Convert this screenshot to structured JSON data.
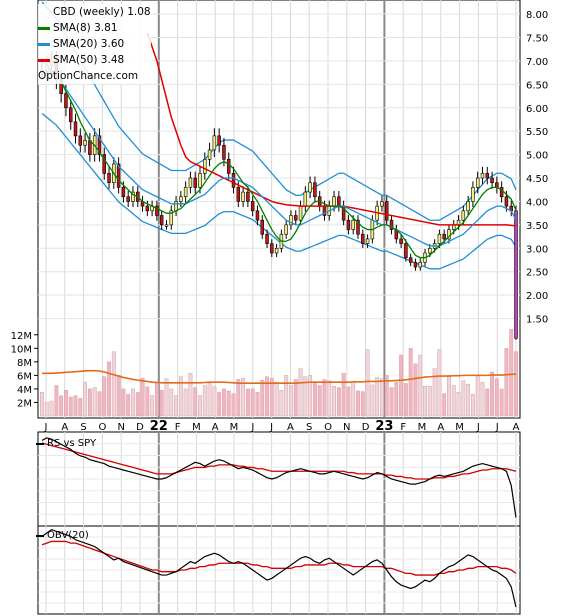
{
  "chart_data": {
    "type": "candlestick",
    "title": "CBD (weekly) 1.08",
    "watermark": "OptionChance.com",
    "legend": [
      {
        "label": "SMA(8) 3.81",
        "color": "#008000"
      },
      {
        "label": "SMA(20) 3.60",
        "color": "#1e8fd6"
      },
      {
        "label": "SMA(50) 3.48",
        "color": "#e00000"
      }
    ],
    "x_tick_labels": [
      "J",
      "A",
      "S",
      "O",
      "N",
      "D",
      "22",
      "F",
      "M",
      "A",
      "M",
      "J",
      "J",
      "A",
      "S",
      "O",
      "N",
      "D",
      "23",
      "F",
      "M",
      "A",
      "M",
      "J",
      "J",
      "A"
    ],
    "price_axis_ticks": [
      "8.00",
      "7.50",
      "7.00",
      "6.50",
      "6.00",
      "5.50",
      "5.00",
      "4.50",
      "4.00",
      "3.50",
      "3.00",
      "2.50",
      "2.00",
      "1.50"
    ],
    "price_ylim": [
      1.0,
      8.3
    ],
    "volume_axis_ticks": [
      "12M",
      "10M",
      "8M",
      "6M",
      "4M",
      "2M"
    ],
    "volume_ylim": [
      0,
      13
    ],
    "close": [
      6.8,
      6.9,
      7.0,
      6.6,
      6.3,
      6.0,
      5.7,
      5.4,
      5.2,
      5.3,
      5.0,
      5.4,
      5.0,
      4.6,
      4.4,
      4.8,
      4.3,
      4.1,
      4.0,
      4.2,
      4.0,
      3.9,
      3.8,
      3.9,
      3.7,
      3.5,
      3.5,
      3.8,
      4.0,
      4.1,
      4.3,
      4.5,
      4.3,
      4.6,
      4.9,
      5.1,
      5.4,
      5.2,
      4.9,
      4.6,
      4.3,
      4.0,
      4.2,
      4.0,
      3.8,
      3.6,
      3.3,
      3.1,
      2.9,
      3.0,
      3.3,
      3.5,
      3.7,
      3.6,
      3.9,
      4.2,
      4.4,
      4.1,
      3.9,
      3.7,
      3.9,
      4.1,
      3.9,
      3.6,
      3.4,
      3.6,
      3.3,
      3.1,
      3.2,
      3.6,
      3.9,
      4.0,
      3.6,
      3.4,
      3.2,
      3.1,
      2.8,
      2.7,
      2.6,
      2.7,
      2.9,
      3.0,
      3.1,
      3.3,
      3.2,
      3.4,
      3.5,
      3.6,
      3.8,
      4.0,
      4.3,
      4.5,
      4.6,
      4.5,
      4.4,
      4.3,
      4.1,
      3.9,
      3.8,
      1.08
    ],
    "sma8": [
      6.7,
      6.75,
      6.8,
      6.7,
      6.55,
      6.35,
      6.15,
      5.95,
      5.7,
      5.5,
      5.3,
      5.2,
      5.05,
      4.9,
      4.75,
      4.6,
      4.45,
      4.35,
      4.25,
      4.15,
      4.1,
      4.0,
      3.95,
      3.9,
      3.85,
      3.8,
      3.75,
      3.75,
      3.8,
      3.85,
      3.95,
      4.05,
      4.15,
      4.25,
      4.4,
      4.55,
      4.7,
      4.8,
      4.85,
      4.8,
      4.7,
      4.55,
      4.4,
      4.3,
      4.15,
      4.0,
      3.8,
      3.6,
      3.4,
      3.25,
      3.15,
      3.15,
      3.2,
      3.35,
      3.55,
      3.75,
      3.9,
      4.0,
      4.0,
      3.95,
      3.9,
      3.9,
      3.9,
      3.85,
      3.75,
      3.65,
      3.55,
      3.45,
      3.4,
      3.4,
      3.45,
      3.5,
      3.5,
      3.45,
      3.4,
      3.3,
      3.15,
      3.0,
      2.85,
      2.8,
      2.8,
      2.85,
      2.95,
      3.05,
      3.15,
      3.25,
      3.35,
      3.45,
      3.55,
      3.7,
      3.85,
      4.0,
      4.15,
      4.25,
      4.3,
      4.3,
      4.25,
      4.15,
      4.05,
      3.81
    ],
    "sma20": [
      7.0,
      6.9,
      6.8,
      6.7,
      6.55,
      6.4,
      6.25,
      6.1,
      5.95,
      5.8,
      5.65,
      5.5,
      5.35,
      5.2,
      5.05,
      4.9,
      4.75,
      4.65,
      4.55,
      4.45,
      4.35,
      4.25,
      4.2,
      4.15,
      4.1,
      4.05,
      4.0,
      3.95,
      3.95,
      3.95,
      3.95,
      4.0,
      4.05,
      4.1,
      4.15,
      4.25,
      4.35,
      4.45,
      4.5,
      4.5,
      4.5,
      4.45,
      4.4,
      4.35,
      4.3,
      4.2,
      4.1,
      4.0,
      3.9,
      3.8,
      3.7,
      3.6,
      3.55,
      3.5,
      3.5,
      3.55,
      3.6,
      3.65,
      3.7,
      3.75,
      3.8,
      3.85,
      3.9,
      3.9,
      3.85,
      3.8,
      3.75,
      3.7,
      3.65,
      3.6,
      3.55,
      3.5,
      3.5,
      3.45,
      3.4,
      3.35,
      3.3,
      3.25,
      3.2,
      3.15,
      3.1,
      3.05,
      3.05,
      3.05,
      3.1,
      3.15,
      3.2,
      3.25,
      3.3,
      3.4,
      3.5,
      3.6,
      3.7,
      3.8,
      3.85,
      3.9,
      3.9,
      3.85,
      3.8,
      3.6
    ],
    "sma50": [
      null,
      null,
      null,
      null,
      null,
      null,
      null,
      null,
      null,
      null,
      null,
      null,
      null,
      null,
      null,
      null,
      null,
      null,
      null,
      null,
      null,
      null,
      7.6,
      7.3,
      7.0,
      6.6,
      6.2,
      5.8,
      5.5,
      5.2,
      4.95,
      4.85,
      4.8,
      4.75,
      4.7,
      4.65,
      4.6,
      4.55,
      4.5,
      4.45,
      4.4,
      4.35,
      4.3,
      4.25,
      4.2,
      4.15,
      4.1,
      4.05,
      4.0,
      3.97,
      3.95,
      3.93,
      3.92,
      3.91,
      3.9,
      3.9,
      3.9,
      3.9,
      3.9,
      3.9,
      3.9,
      3.9,
      3.9,
      3.9,
      3.88,
      3.86,
      3.84,
      3.82,
      3.8,
      3.78,
      3.76,
      3.74,
      3.72,
      3.7,
      3.68,
      3.66,
      3.64,
      3.62,
      3.6,
      3.58,
      3.56,
      3.54,
      3.52,
      3.5,
      3.5,
      3.5,
      3.5,
      3.5,
      3.5,
      3.5,
      3.5,
      3.5,
      3.5,
      3.5,
      3.5,
      3.5,
      3.5,
      3.5,
      3.49,
      3.48
    ],
    "volume": [
      3.5,
      2.0,
      2.2,
      4.5,
      3.0,
      3.8,
      2.8,
      3.0,
      2.6,
      5.0,
      4.0,
      4.2,
      3.6,
      5.8,
      8.0,
      9.5,
      6.0,
      4.0,
      3.2,
      4.0,
      3.5,
      5.6,
      4.3,
      3.0,
      5.0,
      3.8,
      5.5,
      4.0,
      3.0,
      5.8,
      4.0,
      6.3,
      4.2,
      3.0,
      4.5,
      4.8,
      4.3,
      3.5,
      4.0,
      3.7,
      3.3,
      5.4,
      5.6,
      4.0,
      4.0,
      3.5,
      5.3,
      5.8,
      5.6,
      5.0,
      3.8,
      6.0,
      4.5,
      5.4,
      7.0,
      5.8,
      6.0,
      5.0,
      4.5,
      5.4,
      5.2,
      4.4,
      4.2,
      6.3,
      4.3,
      5.0,
      3.7,
      3.6,
      9.8,
      4.6,
      5.7,
      5.5,
      6.0,
      4.2,
      5.0,
      9.0,
      4.8,
      10.0,
      7.7,
      9.0,
      4.4,
      4.4,
      7.0,
      9.8,
      3.3,
      6.0,
      4.5,
      3.5,
      5.2,
      4.7,
      3.2,
      6.0,
      5.0,
      4.0,
      6.5,
      5.5,
      4.0,
      10.0,
      12.8,
      9.5
    ],
    "volume_sma": [
      6.3,
      6.3,
      6.3,
      6.35,
      6.4,
      6.45,
      6.5,
      6.55,
      6.6,
      6.65,
      6.7,
      6.7,
      6.65,
      6.5,
      6.3,
      6.1,
      5.9,
      5.7,
      5.55,
      5.4,
      5.3,
      5.2,
      5.1,
      5.0,
      4.95,
      4.9,
      4.9,
      4.9,
      4.9,
      4.9,
      4.9,
      4.9,
      4.9,
      4.9,
      4.95,
      5.0,
      5.0,
      5.0,
      5.0,
      4.95,
      4.9,
      4.85,
      4.85,
      4.85,
      4.85,
      4.85,
      4.85,
      4.85,
      4.85,
      4.85,
      4.85,
      4.85,
      4.85,
      4.85,
      4.9,
      4.95,
      5.0,
      5.0,
      5.0,
      5.0,
      5.0,
      5.0,
      5.0,
      5.0,
      5.0,
      5.05,
      5.05,
      5.05,
      5.1,
      5.1,
      5.1,
      5.15,
      5.2,
      5.2,
      5.25,
      5.3,
      5.35,
      5.45,
      5.55,
      5.65,
      5.75,
      5.8,
      5.85,
      5.9,
      5.9,
      5.9,
      5.95,
      5.95,
      6.0,
      6.0,
      6.0,
      6.0,
      6.0,
      6.0,
      6.05,
      6.05,
      6.05,
      6.1,
      6.15,
      6.2
    ],
    "rs_label": "RS vs SPY",
    "rs": [
      100,
      102,
      101,
      99,
      97,
      95,
      93,
      90,
      88,
      87,
      85,
      84,
      83,
      82,
      80,
      79,
      78,
      77,
      76,
      75,
      74,
      73,
      72,
      71,
      70,
      70,
      71,
      73,
      75,
      77,
      79,
      81,
      83,
      82,
      80,
      82,
      84,
      85,
      84,
      82,
      80,
      78,
      79,
      78,
      77,
      75,
      73,
      71,
      70,
      71,
      73,
      75,
      76,
      77,
      78,
      77,
      76,
      75,
      74,
      74,
      75,
      76,
      75,
      74,
      73,
      72,
      71,
      70,
      71,
      73,
      75,
      74,
      72,
      70,
      69,
      68,
      67,
      66,
      66,
      67,
      68,
      70,
      72,
      73,
      72,
      73,
      74,
      75,
      76,
      78,
      80,
      81,
      82,
      81,
      80,
      79,
      78,
      76,
      65,
      40
    ],
    "rs_sma": [
      98,
      97,
      96,
      95,
      94,
      93,
      92,
      91,
      90,
      89,
      88,
      87,
      86,
      85,
      84,
      83,
      82,
      81,
      80,
      79,
      78,
      77,
      76,
      75,
      74,
      74,
      74,
      74,
      75,
      76,
      77,
      78,
      79,
      79,
      79,
      80,
      80,
      81,
      81,
      81,
      81,
      80,
      80,
      79,
      79,
      78,
      78,
      77,
      76,
      76,
      76,
      76,
      76,
      76,
      76,
      76,
      76,
      76,
      76,
      76,
      76,
      76,
      76,
      76,
      75,
      75,
      74,
      74,
      74,
      74,
      74,
      74,
      73,
      73,
      72,
      72,
      71,
      71,
      70,
      70,
      70,
      70,
      71,
      71,
      71,
      72,
      72,
      73,
      74,
      74,
      75,
      76,
      77,
      77,
      78,
      78,
      78,
      78,
      77,
      76
    ],
    "rs_ylim": [
      35,
      105
    ],
    "obv_label": "OBV(20)",
    "obv": [
      60,
      62,
      64,
      63,
      62,
      61,
      60,
      58,
      57,
      56,
      55,
      54,
      52,
      50,
      48,
      46,
      47,
      45,
      44,
      43,
      42,
      41,
      40,
      39,
      38,
      37,
      37,
      38,
      39,
      41,
      43,
      45,
      44,
      46,
      48,
      49,
      50,
      49,
      47,
      45,
      44,
      45,
      44,
      42,
      40,
      38,
      36,
      34,
      35,
      37,
      39,
      41,
      43,
      45,
      47,
      48,
      47,
      45,
      44,
      46,
      47,
      45,
      43,
      41,
      39,
      37,
      39,
      41,
      43,
      45,
      46,
      44,
      40,
      36,
      33,
      31,
      30,
      29,
      30,
      32,
      34,
      33,
      35,
      38,
      40,
      42,
      43,
      45,
      47,
      49,
      48,
      46,
      44,
      42,
      40,
      39,
      37,
      35,
      30,
      18
    ],
    "obv_sma": [
      55,
      56,
      57,
      57,
      57,
      57,
      56,
      56,
      55,
      54,
      53,
      52,
      51,
      50,
      49,
      48,
      47,
      46,
      45,
      44,
      43,
      42,
      41,
      40,
      40,
      39,
      39,
      39,
      39,
      40,
      40,
      41,
      41,
      42,
      42,
      43,
      43,
      44,
      44,
      44,
      44,
      44,
      44,
      44,
      43,
      43,
      42,
      42,
      41,
      41,
      41,
      41,
      41,
      42,
      42,
      43,
      43,
      43,
      43,
      43,
      44,
      44,
      44,
      43,
      43,
      42,
      42,
      42,
      42,
      42,
      42,
      42,
      41,
      41,
      40,
      39,
      38,
      38,
      37,
      37,
      37,
      37,
      37,
      38,
      38,
      39,
      39,
      40,
      40,
      41,
      41,
      42,
      42,
      42,
      42,
      42,
      41,
      41,
      40,
      38
    ],
    "obv_ylim": [
      15,
      65
    ]
  }
}
